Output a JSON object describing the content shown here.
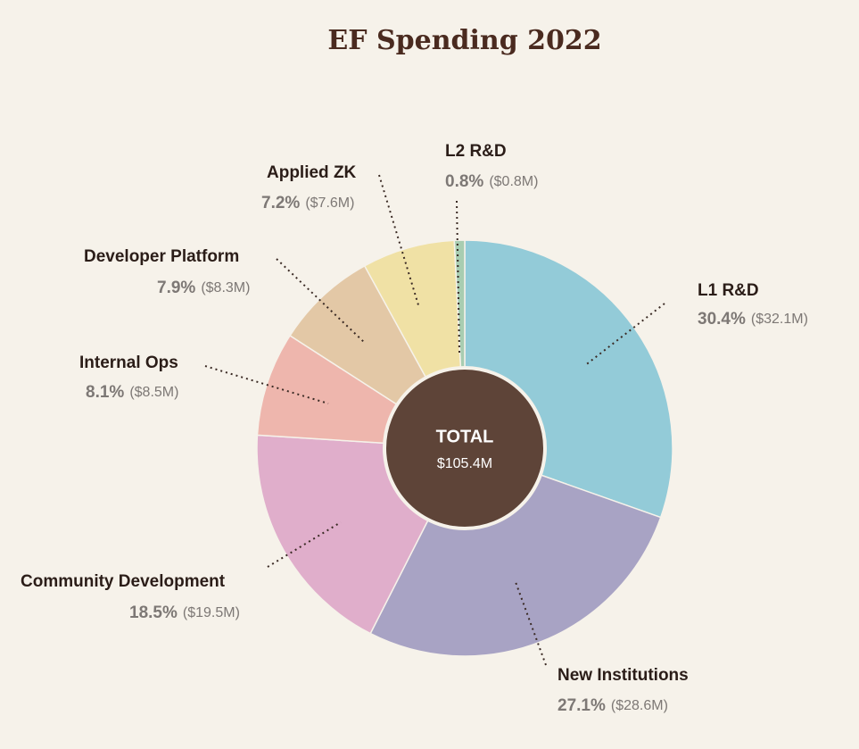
{
  "chart_data": {
    "type": "donut",
    "title": "EF Spending 2022",
    "categories": [
      "L1 R&D",
      "New Institutions",
      "Community Development",
      "Internal Ops",
      "Developer Platform",
      "Applied ZK",
      "L2 R&D"
    ],
    "values": [
      30.4,
      27.1,
      18.5,
      8.1,
      7.9,
      7.2,
      0.8
    ],
    "value_labels": [
      "30.4%",
      "27.1%",
      "18.5%",
      "8.1%",
      "7.9%",
      "7.2%",
      "0.8%"
    ],
    "amount_labels": [
      "($32.1M)",
      "($28.6M)",
      "($19.5M)",
      "($8.5M)",
      "($8.3M)",
      "($7.6M)",
      "($0.8M)"
    ],
    "colors": [
      "#93cbd8",
      "#a8a3c4",
      "#e0aecb",
      "#eeb6ad",
      "#e3c8a6",
      "#f0e1a5",
      "#a8cdb1"
    ],
    "center_title": "TOTAL",
    "center_value": "$105.4M",
    "center_color": "#5e4438"
  }
}
